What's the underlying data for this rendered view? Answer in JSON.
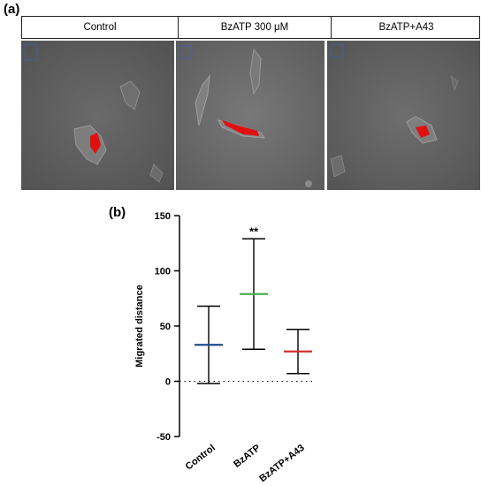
{
  "panel_a": {
    "label": "(a)",
    "conditions": [
      "Control",
      "BzATP 300 μM",
      "BzATP+A43"
    ]
  },
  "panel_b": {
    "label": "(b)"
  },
  "colors": {
    "Control": "#1f4e8c",
    "BzATP": "#4caf50",
    "BzATP+A43": "#d32f2f",
    "cell_stain": "#e01010"
  },
  "chart_data": {
    "type": "error_bar",
    "title": "",
    "xlabel": "",
    "ylabel": "Migrated distance",
    "ylim": [
      -50,
      150
    ],
    "yticks": [
      -50,
      0,
      50,
      100,
      150
    ],
    "zero_line": "dotted",
    "categories": [
      "Control",
      "BzATP",
      "BzATP+A43"
    ],
    "series": [
      {
        "mean": [
          33,
          79,
          27
        ],
        "min": [
          -2,
          29,
          7
        ],
        "max": [
          68,
          129,
          47
        ]
      }
    ],
    "annotations": [
      {
        "category": "BzATP",
        "text": "**"
      }
    ]
  }
}
